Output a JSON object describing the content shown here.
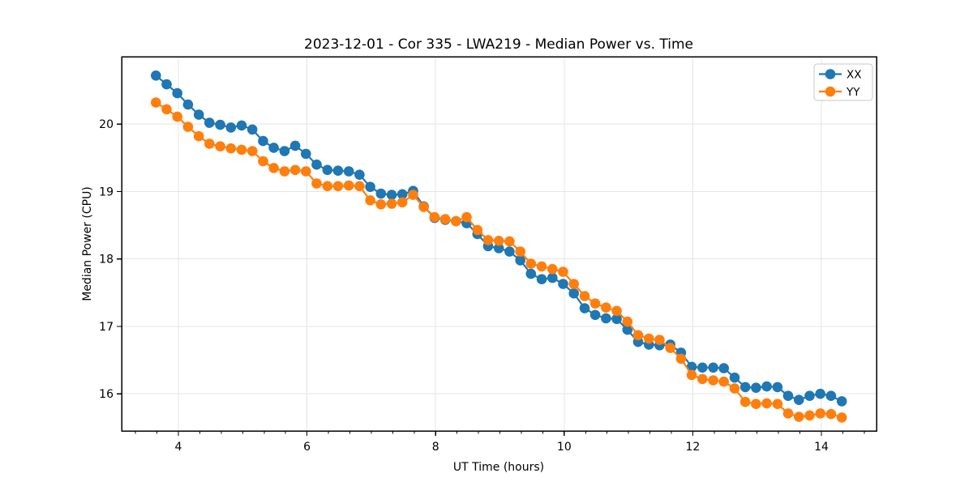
{
  "chart_data": {
    "type": "line",
    "title": "2023-12-01 - Cor 335 - LWA219 - Median Power vs. Time",
    "xlabel": "UT Time (hours)",
    "ylabel": "Median Power (CPU)",
    "xlim": [
      3.117,
      14.857
    ],
    "ylim": [
      15.45,
      21.0
    ],
    "xticks": [
      4,
      6,
      8,
      10,
      12,
      14
    ],
    "yticks": [
      16,
      17,
      18,
      19,
      20
    ],
    "x_minor_step": 0.333333,
    "grid": true,
    "legend_position": "upper right",
    "grid_color": "#e5e5e5",
    "x": [
      3.65,
      3.817,
      3.983,
      4.15,
      4.317,
      4.483,
      4.65,
      4.817,
      4.983,
      5.15,
      5.317,
      5.483,
      5.65,
      5.817,
      5.983,
      6.15,
      6.317,
      6.483,
      6.65,
      6.817,
      6.983,
      7.15,
      7.317,
      7.483,
      7.65,
      7.817,
      7.983,
      8.15,
      8.317,
      8.483,
      8.65,
      8.817,
      8.983,
      9.15,
      9.317,
      9.483,
      9.65,
      9.817,
      9.983,
      10.15,
      10.317,
      10.483,
      10.65,
      10.817,
      10.983,
      11.15,
      11.317,
      11.483,
      11.65,
      11.817,
      11.983,
      12.15,
      12.317,
      12.483,
      12.65,
      12.817,
      12.983,
      13.15,
      13.317,
      13.483,
      13.65,
      13.817,
      13.983,
      14.15,
      14.317
    ],
    "series": [
      {
        "name": "XX",
        "color": "#1f77b4",
        "values": [
          20.72,
          20.59,
          20.46,
          20.29,
          20.14,
          20.02,
          19.99,
          19.95,
          19.98,
          19.92,
          19.75,
          19.65,
          19.6,
          19.68,
          19.56,
          19.4,
          19.32,
          19.31,
          19.3,
          19.25,
          19.07,
          18.97,
          18.95,
          18.96,
          19.01,
          18.78,
          18.61,
          18.58,
          18.56,
          18.53,
          18.37,
          18.19,
          18.16,
          18.11,
          17.98,
          17.78,
          17.7,
          17.72,
          17.63,
          17.49,
          17.27,
          17.17,
          17.12,
          17.11,
          16.95,
          16.77,
          16.73,
          16.72,
          16.73,
          16.61,
          16.4,
          16.39,
          16.39,
          16.38,
          16.24,
          16.1,
          16.09,
          16.11,
          16.1,
          15.97,
          15.91,
          15.97,
          16.0,
          15.97,
          15.89
        ]
      },
      {
        "name": "YY",
        "color": "#ff7f0e",
        "values": [
          20.32,
          20.22,
          20.11,
          19.96,
          19.82,
          19.71,
          19.67,
          19.64,
          19.62,
          19.6,
          19.45,
          19.35,
          19.3,
          19.32,
          19.3,
          19.12,
          19.08,
          19.08,
          19.09,
          19.08,
          18.87,
          18.81,
          18.82,
          18.84,
          18.95,
          18.77,
          18.62,
          18.59,
          18.56,
          18.62,
          18.43,
          18.28,
          18.27,
          18.26,
          18.11,
          17.93,
          17.89,
          17.85,
          17.81,
          17.63,
          17.45,
          17.34,
          17.28,
          17.23,
          17.07,
          16.87,
          16.82,
          16.8,
          16.68,
          16.52,
          16.28,
          16.22,
          16.2,
          16.18,
          16.08,
          15.88,
          15.85,
          15.86,
          15.85,
          15.71,
          15.66,
          15.68,
          15.71,
          15.7,
          15.65
        ]
      }
    ]
  }
}
